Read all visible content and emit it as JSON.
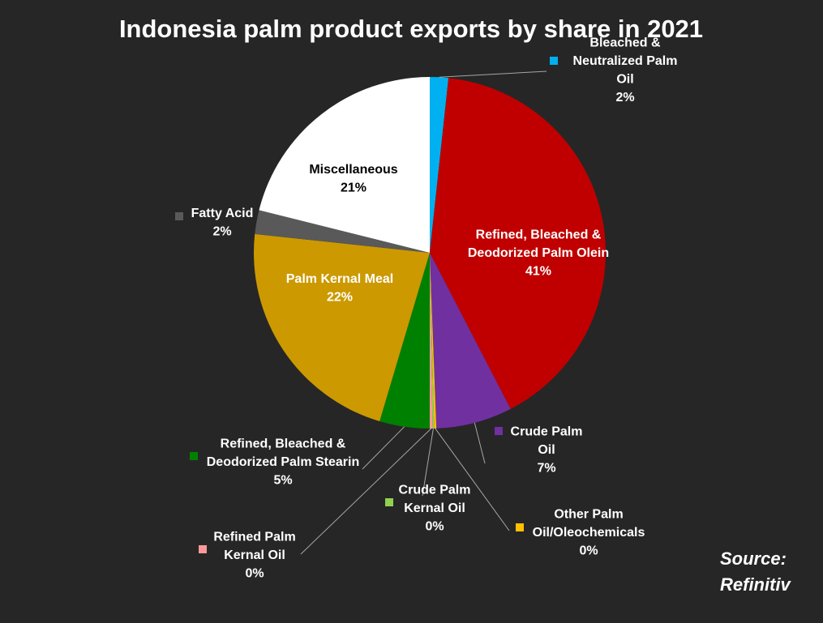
{
  "chart_data": {
    "type": "pie",
    "title": "Indonesia palm product exports by share in 2021",
    "source": [
      "Source:",
      "Refinitiv"
    ],
    "slices": [
      {
        "name": "Bleached & Neutralized Palm Oil",
        "label_lines": [
          "Bleached &",
          "Neutralized Palm",
          "Oil"
        ],
        "pct_label": "2%",
        "value": 1.7,
        "color": "#00b0f0"
      },
      {
        "name": "Refined, Bleached & Deodorized Palm Olein",
        "label_lines": [
          "Refined, Bleached &",
          "Deodorized Palm Olein"
        ],
        "pct_label": "41%",
        "value": 40.7,
        "color": "#c00000"
      },
      {
        "name": "Crude Palm Oil",
        "label_lines": [
          "Crude Palm",
          "Oil"
        ],
        "pct_label": "7%",
        "value": 7.0,
        "color": "#7030a0"
      },
      {
        "name": "Other Palm Oil/Oleochemicals",
        "label_lines": [
          "Other Palm",
          "Oil/Oleochemicals"
        ],
        "pct_label": "0%",
        "value": 0.2,
        "color": "#ffc000"
      },
      {
        "name": "Crude Palm Kernal Oil",
        "label_lines": [
          "Crude Palm",
          "Kernal Oil"
        ],
        "pct_label": "0%",
        "value": 0.15,
        "color": "#92d050"
      },
      {
        "name": "Refined Palm Kernal Oil",
        "label_lines": [
          "Refined Palm",
          "Kernal Oil"
        ],
        "pct_label": "0%",
        "value": 0.25,
        "color": "#ff9999"
      },
      {
        "name": "Refined, Bleached & Deodorized Palm Stearin",
        "label_lines": [
          "Refined, Bleached &",
          "Deodorized Palm Stearin"
        ],
        "pct_label": "5%",
        "value": 4.6,
        "color": "#008000"
      },
      {
        "name": "Palm Kernal Meal",
        "label_lines": [
          "Palm Kernal Meal"
        ],
        "pct_label": "22%",
        "value": 22.1,
        "color": "#cc9900"
      },
      {
        "name": "Fatty Acid",
        "label_lines": [
          "Fatty Acid"
        ],
        "pct_label": "2%",
        "value": 2.2,
        "color": "#595959"
      },
      {
        "name": "Miscellaneous",
        "label_lines": [
          "Miscellaneous"
        ],
        "pct_label": "21%",
        "value": 21.1,
        "color": "#ffffff"
      }
    ]
  }
}
